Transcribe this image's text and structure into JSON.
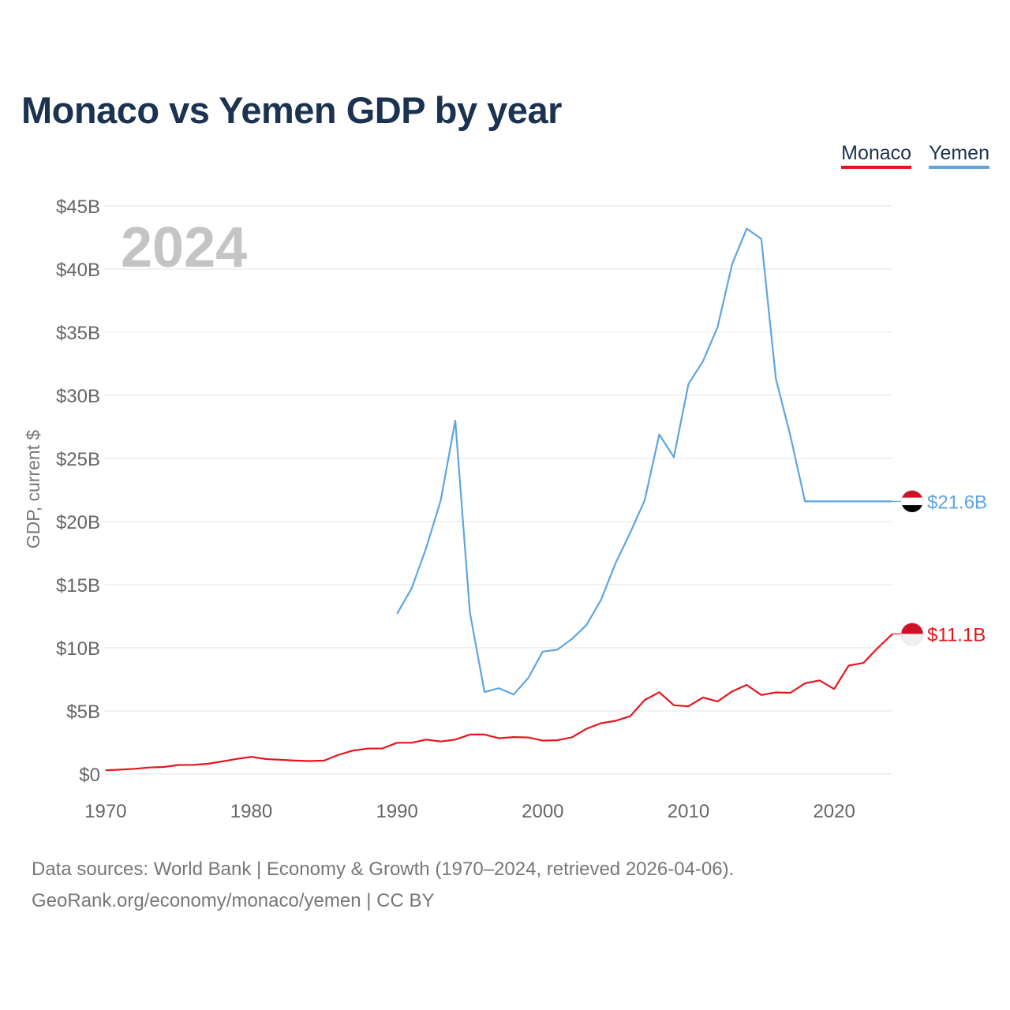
{
  "title": "Monaco vs Yemen GDP by year",
  "legend": [
    {
      "label": "Monaco",
      "color": "#e8141c"
    },
    {
      "label": "Yemen",
      "color": "#5ea5e0"
    }
  ],
  "year_label": "2024",
  "source": {
    "line1": "Data sources: World Bank | Economy & Growth (1970–2024, retrieved 2026-04-06).",
    "line2": "GeoRank.org/economy/monaco/yemen | CC BY"
  },
  "chart_data": {
    "type": "line",
    "title": "Monaco vs Yemen GDP by year",
    "xlabel": "",
    "ylabel": "GDP, current $",
    "xlim": [
      1970,
      2024
    ],
    "ylim": [
      0,
      45
    ],
    "y_unit": "billion USD",
    "x_ticks": [
      1970,
      1980,
      1990,
      2000,
      2010,
      2020
    ],
    "y_ticks": [
      {
        "value": 0,
        "label": "$0"
      },
      {
        "value": 5,
        "label": "$5B"
      },
      {
        "value": 10,
        "label": "$10B"
      },
      {
        "value": 15,
        "label": "$15B"
      },
      {
        "value": 20,
        "label": "$20B"
      },
      {
        "value": 25,
        "label": "$25B"
      },
      {
        "value": 30,
        "label": "$30B"
      },
      {
        "value": 35,
        "label": "$35B"
      },
      {
        "value": 40,
        "label": "$40B"
      },
      {
        "value": 45,
        "label": "$45B"
      }
    ],
    "grid": true,
    "legend_position": "top-right",
    "series": [
      {
        "name": "Monaco",
        "color": "#e8141c",
        "end_label": "$11.1B",
        "flag": "monaco",
        "x": [
          1970,
          1971,
          1972,
          1973,
          1974,
          1975,
          1976,
          1977,
          1978,
          1979,
          1980,
          1981,
          1982,
          1983,
          1984,
          1985,
          1986,
          1987,
          1988,
          1989,
          1990,
          1991,
          1992,
          1993,
          1994,
          1995,
          1996,
          1997,
          1998,
          1999,
          2000,
          2001,
          2002,
          2003,
          2004,
          2005,
          2006,
          2007,
          2008,
          2009,
          2010,
          2011,
          2012,
          2013,
          2014,
          2015,
          2016,
          2017,
          2018,
          2019,
          2020,
          2021,
          2022,
          2023,
          2024
        ],
        "values": [
          0.3,
          0.35,
          0.42,
          0.52,
          0.56,
          0.72,
          0.73,
          0.81,
          1.0,
          1.2,
          1.37,
          1.19,
          1.13,
          1.07,
          1.03,
          1.07,
          1.53,
          1.87,
          2.02,
          2.03,
          2.48,
          2.48,
          2.73,
          2.58,
          2.73,
          3.13,
          3.13,
          2.84,
          2.93,
          2.9,
          2.65,
          2.68,
          2.91,
          3.59,
          4.03,
          4.22,
          4.58,
          5.87,
          6.48,
          5.45,
          5.37,
          6.07,
          5.75,
          6.55,
          7.06,
          6.26,
          6.47,
          6.44,
          7.19,
          7.42,
          6.74,
          8.6,
          8.8,
          10.0,
          11.1
        ]
      },
      {
        "name": "Yemen",
        "color": "#5ea5e0",
        "end_label": "$21.6B",
        "flag": "yemen",
        "x": [
          1990,
          1991,
          1992,
          1993,
          1994,
          1995,
          1996,
          1997,
          1998,
          1999,
          2000,
          2001,
          2002,
          2003,
          2004,
          2005,
          2006,
          2007,
          2008,
          2009,
          2010,
          2011,
          2012,
          2013,
          2014,
          2015,
          2016,
          2017,
          2018,
          2019,
          2020,
          2021,
          2022,
          2023,
          2024
        ],
        "values": [
          12.7,
          14.7,
          17.9,
          21.7,
          28.0,
          12.8,
          6.5,
          6.8,
          6.3,
          7.6,
          9.7,
          9.85,
          10.7,
          11.8,
          13.8,
          16.7,
          19.1,
          21.7,
          26.9,
          25.1,
          30.9,
          32.7,
          35.4,
          40.4,
          43.2,
          42.4,
          31.3,
          26.8,
          21.6,
          21.6,
          21.6,
          21.6,
          21.6,
          21.6,
          21.6
        ]
      }
    ]
  }
}
